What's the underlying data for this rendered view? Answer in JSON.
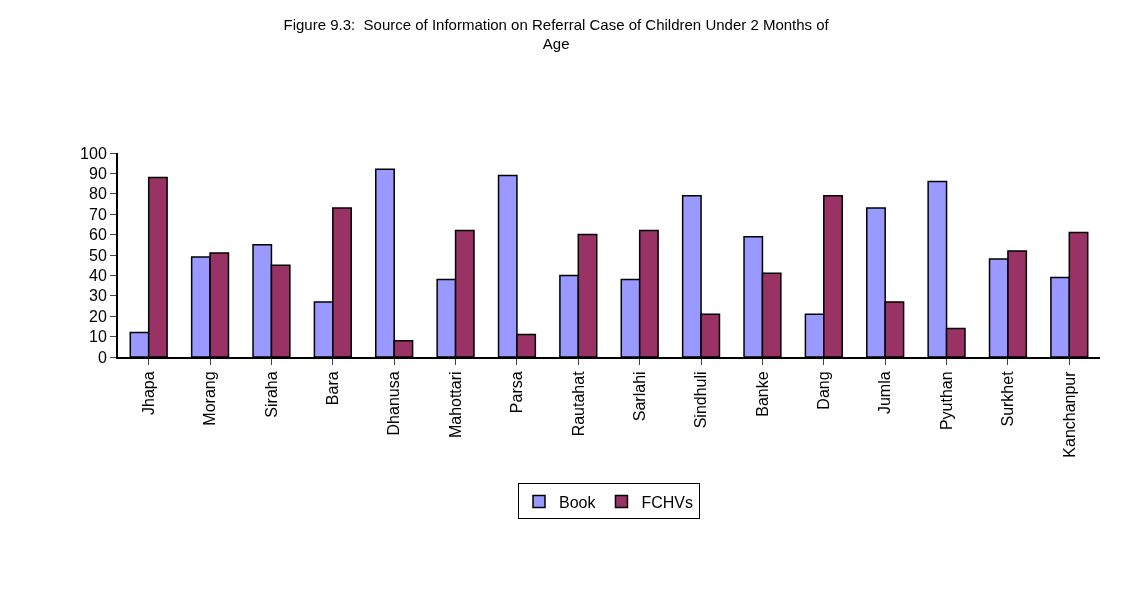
{
  "chart_data": {
    "type": "bar",
    "title": "Figure 9.3:  Source of Information on Referral Case of Children Under 2 Months of Age",
    "categories": [
      "Jhapa",
      "Morang",
      "Siraha",
      "Bara",
      "Dhanusa",
      "Mahottari",
      "Parsa",
      "Rautahat",
      "Sarlahi",
      "Sindhuli",
      "Banke",
      "Dang",
      "Jumla",
      "Pyuthan",
      "Surkhet",
      "Kanchanpur"
    ],
    "series": [
      {
        "name": "Book",
        "color": "#9999ff",
        "values": [
          12,
          49,
          55,
          27,
          92,
          38,
          89,
          40,
          38,
          79,
          59,
          21,
          73,
          86,
          48,
          39
        ]
      },
      {
        "name": "FCHVs",
        "color": "#993366",
        "values": [
          88,
          51,
          45,
          73,
          8,
          62,
          11,
          60,
          62,
          21,
          41,
          79,
          27,
          14,
          52,
          61
        ]
      }
    ],
    "ylim": [
      0,
      100
    ],
    "yticks": [
      0,
      10,
      20,
      30,
      40,
      50,
      60,
      70,
      80,
      90,
      100
    ],
    "legend": "bottom"
  }
}
